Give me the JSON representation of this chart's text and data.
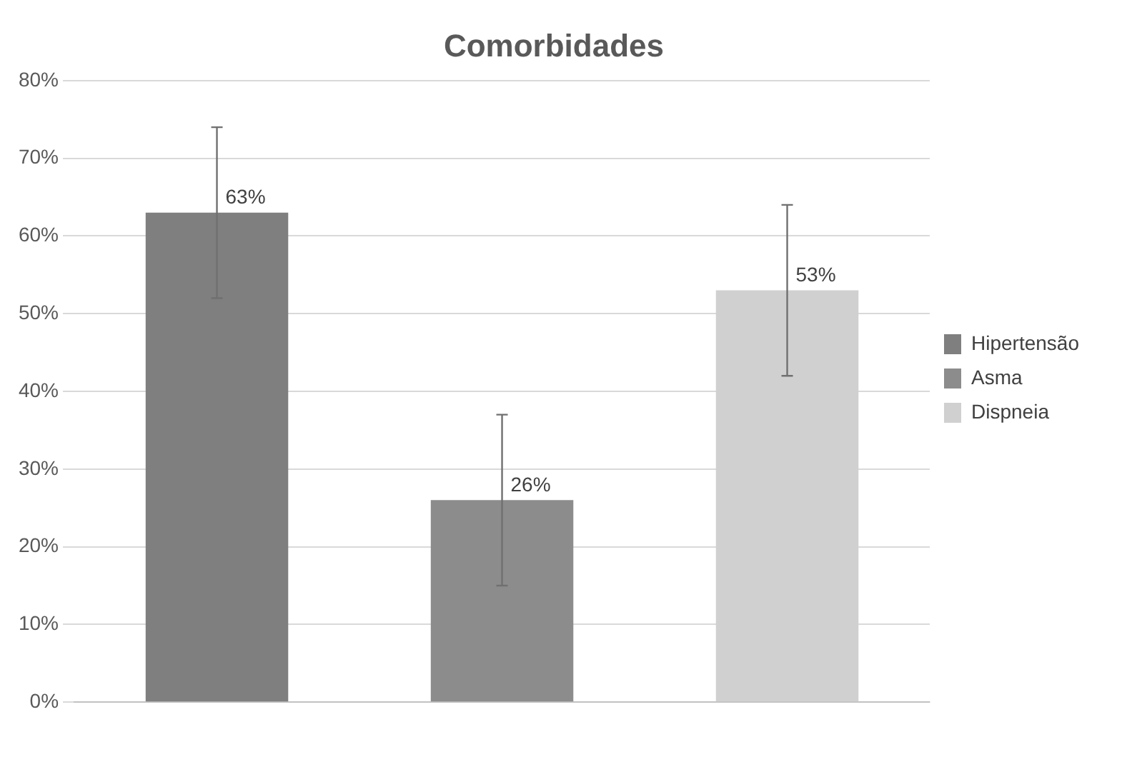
{
  "chart_data": {
    "type": "bar",
    "title": "Comorbidades",
    "categories": [
      null,
      null,
      null
    ],
    "series": [
      {
        "name": "Hipertensão",
        "color": "#7f7f7f",
        "values": [
          63,
          null,
          null
        ],
        "errors": [
          11,
          null,
          null
        ],
        "value_labels": [
          "63%",
          null,
          null
        ]
      },
      {
        "name": "Asma",
        "color": "#8c8c8c",
        "values": [
          null,
          26,
          null
        ],
        "errors": [
          null,
          11,
          null
        ],
        "value_labels": [
          null,
          "26%",
          null
        ]
      },
      {
        "name": "Dispneia",
        "color": "#d0d0d0",
        "values": [
          null,
          null,
          53
        ],
        "errors": [
          null,
          null,
          11
        ],
        "value_labels": [
          null,
          null,
          "53%"
        ]
      }
    ],
    "ylim": [
      0,
      80
    ],
    "yticks": [
      {
        "value": 0,
        "label": "0%"
      },
      {
        "value": 10,
        "label": "10%"
      },
      {
        "value": 20,
        "label": "20%"
      },
      {
        "value": 30,
        "label": "30%"
      },
      {
        "value": 40,
        "label": "40%"
      },
      {
        "value": 50,
        "label": "50%"
      },
      {
        "value": 60,
        "label": "60%"
      },
      {
        "value": 70,
        "label": "70%"
      },
      {
        "value": 80,
        "label": "80%"
      }
    ],
    "grid": "y",
    "legend": "right"
  }
}
